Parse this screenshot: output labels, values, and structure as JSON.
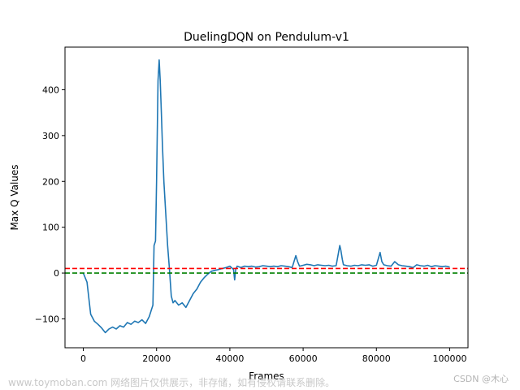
{
  "chart_data": {
    "type": "line",
    "title": "DuelingDQN on Pendulum-v1",
    "xlabel": "Frames",
    "ylabel": "Max Q Values",
    "xlim": [
      -5000,
      105000
    ],
    "ylim": [
      -163,
      493
    ],
    "xticks": [
      0,
      20000,
      40000,
      60000,
      80000,
      100000
    ],
    "xtick_labels": [
      "0",
      "20000",
      "40000",
      "60000",
      "80000",
      "100000"
    ],
    "yticks": [
      -100,
      0,
      100,
      200,
      300,
      400
    ],
    "ytick_labels": [
      "−100",
      "0",
      "100",
      "200",
      "300",
      "400"
    ],
    "grid": false,
    "legend": "none",
    "series": [
      {
        "color": "#1f77b4",
        "x": [
          0,
          1000,
          2000,
          3000,
          4000,
          5000,
          6000,
          7000,
          8000,
          9000,
          10000,
          11000,
          12000,
          13000,
          14000,
          15000,
          16000,
          17000,
          18000,
          19000,
          19300,
          19700,
          20000,
          20400,
          20700,
          21000,
          21300,
          21600,
          22000,
          22500,
          23000,
          23500,
          24000,
          24500,
          25000,
          26000,
          27000,
          28000,
          29000,
          30000,
          31000,
          32000,
          33000,
          34000,
          35000,
          36000,
          37000,
          38000,
          39000,
          40000,
          41000,
          41300,
          41600,
          42000,
          43000,
          44000,
          45000,
          46000,
          47000,
          48000,
          49000,
          50000,
          51000,
          52000,
          53000,
          54000,
          55000,
          56000,
          57000,
          58000,
          58500,
          59000,
          60000,
          61000,
          62000,
          63000,
          64000,
          65000,
          66000,
          67000,
          68000,
          69000,
          70000,
          70300,
          70700,
          71000,
          72000,
          73000,
          74000,
          75000,
          76000,
          77000,
          78000,
          79000,
          80000,
          81000,
          81500,
          82000,
          83000,
          84000,
          85000,
          86000,
          87000,
          88000,
          89000,
          90000,
          91000,
          92000,
          93000,
          94000,
          95000,
          96000,
          97000,
          98000,
          99000,
          100000
        ],
        "values": [
          0,
          -20,
          -90,
          -105,
          -112,
          -120,
          -130,
          -122,
          -118,
          -122,
          -115,
          -118,
          -108,
          -112,
          -105,
          -108,
          -102,
          -110,
          -95,
          -70,
          60,
          70,
          200,
          420,
          465,
          420,
          350,
          280,
          200,
          130,
          60,
          10,
          -50,
          -65,
          -60,
          -70,
          -65,
          -75,
          -60,
          -45,
          -35,
          -20,
          -10,
          -2,
          4,
          6,
          8,
          10,
          12,
          15,
          8,
          -15,
          8,
          15,
          12,
          15,
          14,
          15,
          13,
          14,
          16,
          15,
          14,
          15,
          14,
          16,
          15,
          14,
          12,
          38,
          25,
          15,
          17,
          19,
          18,
          16,
          18,
          17,
          16,
          17,
          15,
          16,
          60,
          50,
          30,
          18,
          16,
          15,
          17,
          16,
          18,
          17,
          18,
          15,
          17,
          45,
          25,
          18,
          16,
          15,
          25,
          18,
          16,
          15,
          14,
          12,
          18,
          16,
          15,
          17,
          14,
          16,
          15,
          14,
          15,
          13
        ]
      }
    ],
    "hlines": [
      {
        "y": 10,
        "color": "#ff0000",
        "style": "dashed"
      },
      {
        "y": 0,
        "color": "#008000",
        "style": "dashed"
      }
    ]
  },
  "watermark": {
    "left": "www.toymoban.com 网络图片仅供展示，非存储，如有侵权请联系删除。",
    "right": "CSDN @木心"
  }
}
